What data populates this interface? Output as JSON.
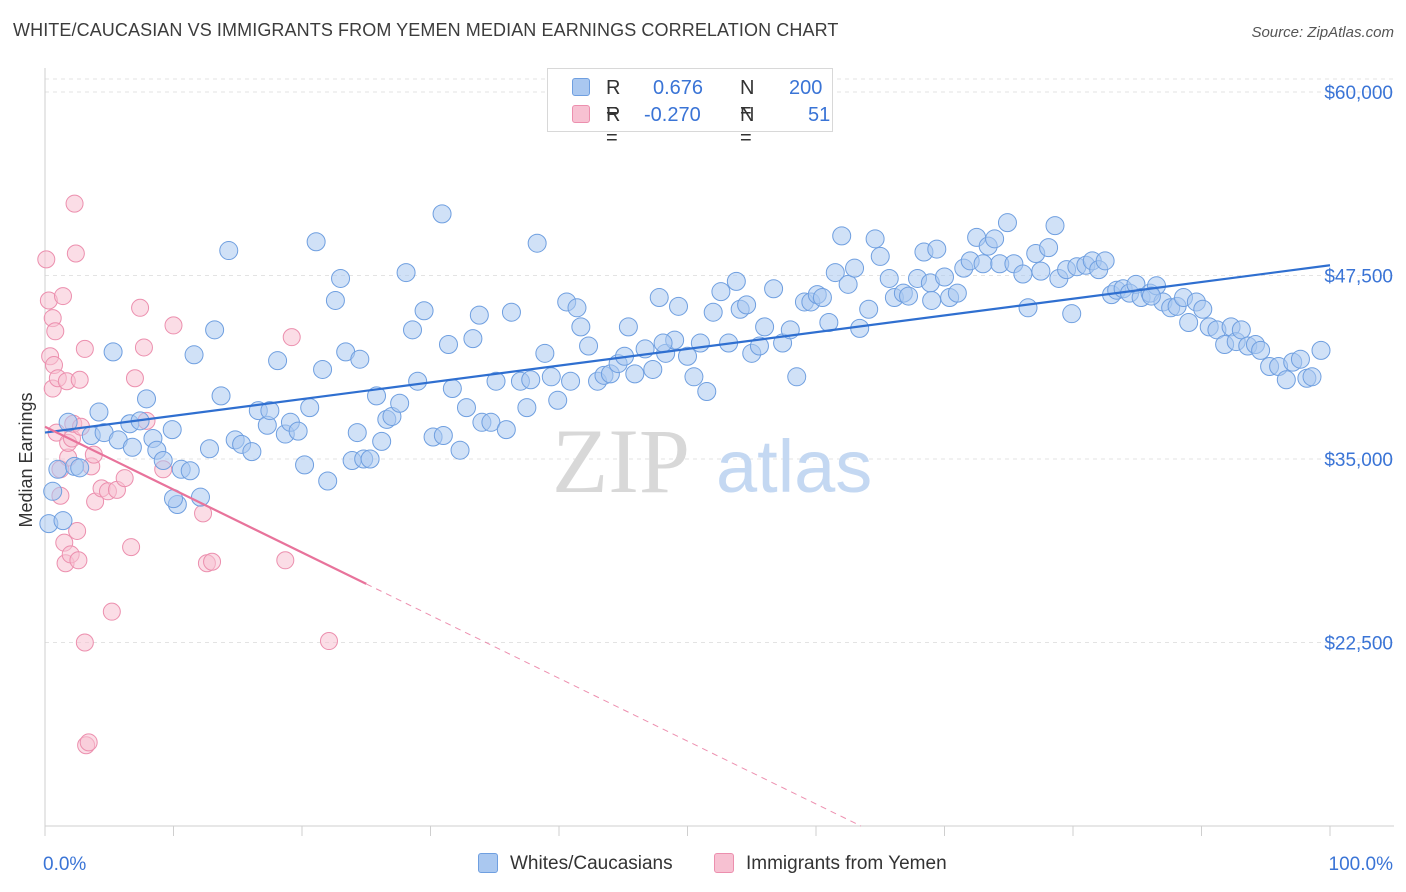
{
  "title": "WHITE/CAUCASIAN VS IMMIGRANTS FROM YEMEN MEDIAN EARNINGS CORRELATION CHART",
  "source": "Source: ZipAtlas.com",
  "watermark": {
    "zip": "ZIP",
    "atlas": "atlas"
  },
  "legend_top": [
    {
      "r_label": "R =",
      "r_value": "0.676",
      "n_label": "N =",
      "n_value": "200"
    },
    {
      "r_label": "R =",
      "r_value": "-0.270",
      "n_label": "N =",
      "n_value": "51"
    }
  ],
  "legend_bottom": [
    "Whites/Caucasians",
    "Immigrants from Yemen"
  ],
  "colors": {
    "blue_fill": "#aac8f0",
    "blue_stroke": "#6f9fe0",
    "blue_line": "#2f6fd0",
    "pink_fill": "#f7c1d2",
    "pink_stroke": "#ec8fae",
    "pink_line": "#e8739b",
    "axis_text": "#3a74d6",
    "grid": "#e3e3e3"
  },
  "chart_data": {
    "type": "scatter",
    "title": "WHITE/CAUCASIAN VS IMMIGRANTS FROM YEMEN MEDIAN EARNINGS CORRELATION CHART",
    "xlabel": "",
    "ylabel": "Median Earnings",
    "xlim": [
      0,
      100
    ],
    "ylim": [
      10000,
      61500
    ],
    "x_tick_labels": [
      "0.0%",
      "100.0%"
    ],
    "y_ticks": [
      22500,
      35000,
      47500,
      60000
    ],
    "y_tick_labels": [
      "$22,500",
      "$35,000",
      "$47,500",
      "$60,000"
    ],
    "grid": true,
    "legend_position": "top-center",
    "series": [
      {
        "name": "Whites/Caucasians",
        "r": 0.676,
        "n": 200,
        "trend": {
          "x": [
            0,
            100
          ],
          "y": [
            36800,
            48200
          ],
          "dashed_from": null
        },
        "points": [
          [
            0.3,
            30600
          ],
          [
            0.6,
            32800
          ],
          [
            1.0,
            34300
          ],
          [
            1.4,
            30800
          ],
          [
            1.8,
            37500
          ],
          [
            2.3,
            34500
          ],
          [
            2.7,
            34400
          ],
          [
            3.6,
            36600
          ],
          [
            4.2,
            38200
          ],
          [
            4.6,
            36800
          ],
          [
            5.3,
            42300
          ],
          [
            5.7,
            36300
          ],
          [
            6.6,
            37400
          ],
          [
            6.8,
            35800
          ],
          [
            7.4,
            37600
          ],
          [
            7.9,
            39100
          ],
          [
            8.4,
            36400
          ],
          [
            8.7,
            35600
          ],
          [
            9.2,
            34900
          ],
          [
            9.9,
            37000
          ],
          [
            10.3,
            31900
          ],
          [
            10.6,
            34300
          ],
          [
            11.3,
            34200
          ],
          [
            11.6,
            42100
          ],
          [
            12.1,
            32400
          ],
          [
            12.8,
            35700
          ],
          [
            13.2,
            43800
          ],
          [
            13.7,
            39300
          ],
          [
            14.3,
            49200
          ],
          [
            14.8,
            36300
          ],
          [
            15.3,
            36000
          ],
          [
            16.1,
            35500
          ],
          [
            16.6,
            38300
          ],
          [
            17.3,
            37300
          ],
          [
            17.5,
            38300
          ],
          [
            18.1,
            41700
          ],
          [
            18.7,
            36700
          ],
          [
            19.1,
            37500
          ],
          [
            19.7,
            36900
          ],
          [
            20.2,
            34600
          ],
          [
            20.6,
            38500
          ],
          [
            21.1,
            49800
          ],
          [
            21.6,
            41100
          ],
          [
            22.0,
            33500
          ],
          [
            22.6,
            45800
          ],
          [
            23.0,
            47300
          ],
          [
            23.4,
            42300
          ],
          [
            23.9,
            34900
          ],
          [
            24.3,
            36800
          ],
          [
            24.8,
            35000
          ],
          [
            25.3,
            35000
          ],
          [
            25.8,
            39300
          ],
          [
            26.2,
            36200
          ],
          [
            26.6,
            37700
          ],
          [
            27.0,
            37900
          ],
          [
            27.6,
            38800
          ],
          [
            28.1,
            47700
          ],
          [
            28.6,
            43800
          ],
          [
            29.0,
            40300
          ],
          [
            29.5,
            45100
          ],
          [
            30.2,
            36500
          ],
          [
            30.9,
            51700
          ],
          [
            31.4,
            42800
          ],
          [
            31.7,
            39800
          ],
          [
            32.3,
            35600
          ],
          [
            32.8,
            38500
          ],
          [
            33.3,
            43200
          ],
          [
            33.8,
            44800
          ],
          [
            34.0,
            37500
          ],
          [
            34.7,
            37500
          ],
          [
            35.1,
            40300
          ],
          [
            35.9,
            37000
          ],
          [
            36.3,
            45000
          ],
          [
            37.0,
            40300
          ],
          [
            37.5,
            38500
          ],
          [
            37.8,
            40400
          ],
          [
            38.3,
            49700
          ],
          [
            38.9,
            42200
          ],
          [
            39.4,
            40600
          ],
          [
            39.9,
            39000
          ],
          [
            40.6,
            45700
          ],
          [
            40.9,
            40300
          ],
          [
            41.4,
            45300
          ],
          [
            41.7,
            44000
          ],
          [
            42.3,
            42700
          ],
          [
            43.0,
            40300
          ],
          [
            43.5,
            40700
          ],
          [
            44.0,
            40800
          ],
          [
            44.6,
            41500
          ],
          [
            45.1,
            42000
          ],
          [
            45.4,
            44000
          ],
          [
            45.9,
            40800
          ],
          [
            46.7,
            42500
          ],
          [
            47.3,
            41100
          ],
          [
            47.8,
            46000
          ],
          [
            48.3,
            42200
          ],
          [
            49.0,
            43100
          ],
          [
            49.3,
            45400
          ],
          [
            50.0,
            42000
          ],
          [
            50.5,
            40600
          ],
          [
            51.0,
            42900
          ],
          [
            51.5,
            39600
          ],
          [
            52.0,
            45000
          ],
          [
            52.6,
            46400
          ],
          [
            53.2,
            42900
          ],
          [
            53.8,
            47100
          ],
          [
            54.1,
            45200
          ],
          [
            54.6,
            45500
          ],
          [
            55.0,
            42200
          ],
          [
            55.6,
            42700
          ],
          [
            56.0,
            44000
          ],
          [
            56.7,
            46600
          ],
          [
            57.4,
            42900
          ],
          [
            58.0,
            43800
          ],
          [
            58.5,
            40600
          ],
          [
            59.1,
            45700
          ],
          [
            59.6,
            45700
          ],
          [
            60.1,
            46200
          ],
          [
            60.5,
            46000
          ],
          [
            61.0,
            44300
          ],
          [
            61.5,
            47700
          ],
          [
            62.0,
            50200
          ],
          [
            62.5,
            46900
          ],
          [
            63.0,
            48000
          ],
          [
            63.4,
            43900
          ],
          [
            64.1,
            45200
          ],
          [
            64.6,
            50000
          ],
          [
            65.0,
            48800
          ],
          [
            65.7,
            47300
          ],
          [
            66.1,
            46000
          ],
          [
            66.8,
            46300
          ],
          [
            67.2,
            46100
          ],
          [
            67.9,
            47300
          ],
          [
            68.4,
            49100
          ],
          [
            68.9,
            47000
          ],
          [
            69.4,
            49300
          ],
          [
            70.0,
            47400
          ],
          [
            70.4,
            46000
          ],
          [
            71.0,
            46300
          ],
          [
            71.5,
            48000
          ],
          [
            72.0,
            48500
          ],
          [
            72.5,
            50100
          ],
          [
            73.0,
            48300
          ],
          [
            73.4,
            49500
          ],
          [
            73.9,
            50000
          ],
          [
            74.3,
            48300
          ],
          [
            74.9,
            51100
          ],
          [
            75.4,
            48300
          ],
          [
            76.1,
            47600
          ],
          [
            76.5,
            45300
          ],
          [
            77.1,
            49000
          ],
          [
            77.5,
            47800
          ],
          [
            78.1,
            49400
          ],
          [
            78.6,
            50900
          ],
          [
            78.9,
            47300
          ],
          [
            79.5,
            47900
          ],
          [
            79.9,
            44900
          ],
          [
            80.3,
            48100
          ],
          [
            81.0,
            48200
          ],
          [
            81.5,
            48500
          ],
          [
            82.0,
            47900
          ],
          [
            82.5,
            48500
          ],
          [
            83.0,
            46200
          ],
          [
            83.4,
            46500
          ],
          [
            83.9,
            46600
          ],
          [
            84.4,
            46300
          ],
          [
            84.9,
            46900
          ],
          [
            85.3,
            46000
          ],
          [
            86.0,
            46300
          ],
          [
            86.5,
            46800
          ],
          [
            87.0,
            45700
          ],
          [
            87.6,
            45300
          ],
          [
            88.1,
            45400
          ],
          [
            88.6,
            46000
          ],
          [
            89.0,
            44300
          ],
          [
            89.6,
            45700
          ],
          [
            90.1,
            45200
          ],
          [
            90.6,
            44000
          ],
          [
            91.2,
            43800
          ],
          [
            91.8,
            42800
          ],
          [
            92.3,
            44000
          ],
          [
            92.7,
            43000
          ],
          [
            93.1,
            43800
          ],
          [
            93.6,
            42700
          ],
          [
            94.2,
            42800
          ],
          [
            94.6,
            42400
          ],
          [
            95.3,
            41300
          ],
          [
            96.0,
            41300
          ],
          [
            96.6,
            40400
          ],
          [
            97.1,
            41600
          ],
          [
            97.7,
            41800
          ],
          [
            98.2,
            40500
          ],
          [
            98.6,
            40600
          ],
          [
            99.3,
            42400
          ],
          [
            31.0,
            36600
          ],
          [
            48.1,
            42900
          ],
          [
            69.0,
            45800
          ],
          [
            86.1,
            46100
          ],
          [
            10.0,
            32300
          ],
          [
            24.5,
            41800
          ]
        ]
      },
      {
        "name": "Immigrants from Yemen",
        "r": -0.27,
        "n": 51,
        "trend": {
          "x": [
            0,
            63.5
          ],
          "y": [
            37200,
            10000
          ],
          "dashed_from": 25
        },
        "points": [
          [
            0.1,
            48600
          ],
          [
            0.3,
            45800
          ],
          [
            0.4,
            42000
          ],
          [
            0.6,
            44600
          ],
          [
            0.6,
            39800
          ],
          [
            0.7,
            41400
          ],
          [
            0.8,
            43700
          ],
          [
            0.9,
            36800
          ],
          [
            1.0,
            40500
          ],
          [
            1.2,
            34300
          ],
          [
            1.2,
            32500
          ],
          [
            1.4,
            46100
          ],
          [
            1.5,
            29300
          ],
          [
            1.6,
            27900
          ],
          [
            1.7,
            40300
          ],
          [
            1.8,
            35100
          ],
          [
            1.8,
            36100
          ],
          [
            2.0,
            28500
          ],
          [
            2.1,
            36400
          ],
          [
            2.2,
            37400
          ],
          [
            2.3,
            52400
          ],
          [
            2.4,
            49000
          ],
          [
            2.5,
            30100
          ],
          [
            2.6,
            28100
          ],
          [
            2.7,
            40400
          ],
          [
            2.8,
            37200
          ],
          [
            3.1,
            42500
          ],
          [
            3.1,
            22500
          ],
          [
            3.2,
            15500
          ],
          [
            3.4,
            15700
          ],
          [
            3.6,
            34500
          ],
          [
            3.8,
            35300
          ],
          [
            3.9,
            32100
          ],
          [
            4.4,
            33000
          ],
          [
            4.9,
            32800
          ],
          [
            5.2,
            24600
          ],
          [
            5.6,
            32900
          ],
          [
            6.2,
            33700
          ],
          [
            6.7,
            29000
          ],
          [
            7.0,
            40500
          ],
          [
            7.4,
            45300
          ],
          [
            7.7,
            42600
          ],
          [
            7.9,
            37600
          ],
          [
            9.2,
            34300
          ],
          [
            10.0,
            44100
          ],
          [
            12.3,
            31300
          ],
          [
            12.6,
            27900
          ],
          [
            13.0,
            28000
          ],
          [
            18.7,
            28100
          ],
          [
            19.2,
            43300
          ],
          [
            22.1,
            22600
          ]
        ]
      }
    ]
  }
}
